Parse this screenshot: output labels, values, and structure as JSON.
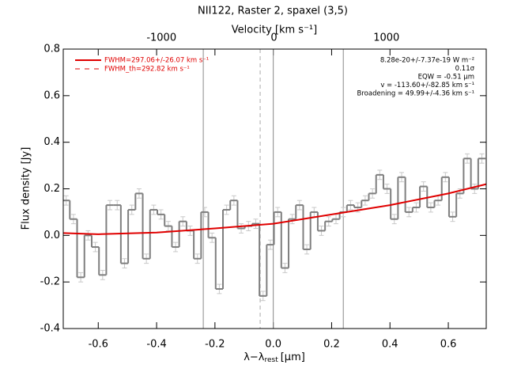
{
  "chart_data": {
    "type": "step",
    "title": "NII122, Raster 2, spaxel (3,5)",
    "xlabel": "λ−λ",
    "xlabel_sub": "rest",
    "xlabel_unit": "[μm]",
    "ylabel": "Flux density [Jy]",
    "x2label": "Velocity [km s⁻¹]",
    "xlim": [
      -0.72,
      0.73
    ],
    "ylim": [
      -0.4,
      0.8
    ],
    "x2lim": [
      -1873,
      1887
    ],
    "xticks": [
      -0.6,
      -0.4,
      -0.2,
      {
        "value": 0,
        "label": "0.0"
      },
      0.2,
      0.4,
      0.6
    ],
    "yticks": [
      -0.4,
      -0.2,
      {
        "value": 0,
        "label": "0.0"
      },
      0.2,
      0.4,
      0.6,
      0.8
    ],
    "x2ticks": [
      -1000,
      0,
      1000
    ],
    "bin_width": 0.025,
    "x": [
      -0.71,
      -0.685,
      -0.66,
      -0.635,
      -0.61,
      -0.585,
      -0.56,
      -0.535,
      -0.51,
      -0.485,
      -0.46,
      -0.435,
      -0.41,
      -0.385,
      -0.36,
      -0.335,
      -0.31,
      -0.285,
      -0.26,
      -0.235,
      -0.21,
      -0.185,
      -0.16,
      -0.135,
      -0.11,
      -0.085,
      -0.06,
      -0.035,
      -0.01,
      0.015,
      0.04,
      0.065,
      0.09,
      0.115,
      0.14,
      0.165,
      0.19,
      0.215,
      0.24,
      0.265,
      0.29,
      0.315,
      0.34,
      0.365,
      0.39,
      0.415,
      0.44,
      0.465,
      0.49,
      0.515,
      0.54,
      0.565,
      0.59,
      0.615,
      0.64,
      0.665,
      0.69,
      0.715
    ],
    "values": [
      0.15,
      0.07,
      -0.18,
      0.0,
      -0.05,
      -0.17,
      0.13,
      0.13,
      -0.12,
      0.11,
      0.18,
      -0.1,
      0.11,
      0.09,
      0.04,
      -0.05,
      0.06,
      0.02,
      -0.1,
      0.1,
      -0.01,
      -0.23,
      0.11,
      0.15,
      0.03,
      0.04,
      0.05,
      -0.26,
      -0.04,
      0.1,
      -0.14,
      0.07,
      0.13,
      -0.06,
      0.1,
      0.02,
      0.06,
      0.07,
      0.1,
      0.13,
      0.12,
      0.15,
      0.18,
      0.26,
      0.2,
      0.07,
      0.25,
      0.1,
      0.12,
      0.21,
      0.12,
      0.15,
      0.25,
      0.08,
      0.18,
      0.33,
      0.2,
      0.33
    ],
    "errors": [
      0.02,
      0.02,
      0.02,
      0.02,
      0.02,
      0.02,
      0.02,
      0.02,
      0.02,
      0.02,
      0.02,
      0.02,
      0.02,
      0.02,
      0.02,
      0.02,
      0.02,
      0.02,
      0.02,
      0.02,
      0.02,
      0.02,
      0.02,
      0.02,
      0.02,
      0.02,
      0.02,
      0.02,
      0.02,
      0.02,
      0.02,
      0.02,
      0.02,
      0.02,
      0.02,
      0.02,
      0.02,
      0.02,
      0.02,
      0.02,
      0.02,
      0.02,
      0.02,
      0.02,
      0.02,
      0.02,
      0.02,
      0.02,
      0.02,
      0.02,
      0.02,
      0.02,
      0.02,
      0.02,
      0.02,
      0.02,
      0.02,
      0.02
    ],
    "color": "#7f7f7f",
    "error_color": "#c8c8c8",
    "fit": {
      "name": "FWHM=297.06+/-26.07 km s⁻¹",
      "color": "#e00000",
      "x": [
        -0.72,
        -0.6,
        -0.4,
        -0.2,
        0.0,
        0.2,
        0.4,
        0.6,
        0.73
      ],
      "values": [
        0.01,
        0.005,
        0.012,
        0.03,
        0.05,
        0.09,
        0.13,
        0.18,
        0.22
      ]
    },
    "legend_extra": {
      "name": "FWHM_th=292.82 km s⁻¹",
      "color": "#e00000",
      "dash": true
    },
    "vlines": [
      {
        "x": -0.24,
        "dash": false
      },
      {
        "x": -0.045,
        "dash": true
      },
      {
        "x": 0,
        "dash": false
      },
      {
        "x": 0.24,
        "dash": false
      }
    ],
    "annotations": [
      "8.28e-20+/-7.37e-19 W m⁻²",
      "0.11σ",
      "EQW = -0.51 μm",
      "v = -113.60+/-82.85 km s⁻¹",
      "Broadening = 49.99+/-4.36 km s⁻¹"
    ],
    "legend": "upper left"
  }
}
